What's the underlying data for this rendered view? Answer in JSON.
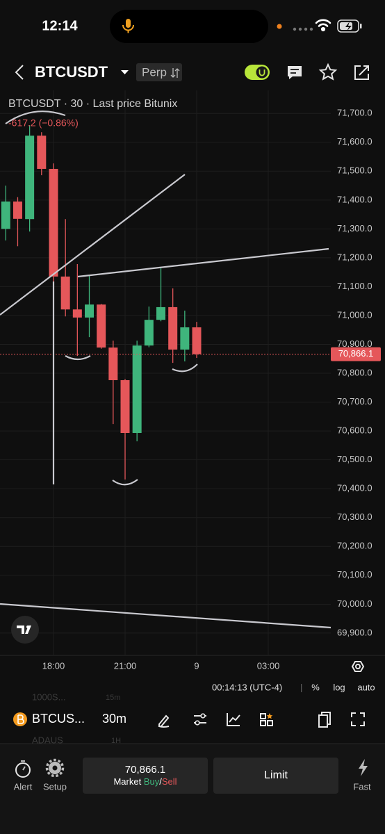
{
  "status_bar": {
    "time": "12:14"
  },
  "header": {
    "symbol": "BTCUSDT",
    "market": "Perp"
  },
  "chart_data": {
    "type": "candlestick",
    "title": "BTCUSDT · 30 · Last price Bitunix",
    "subtitle": "-617.2 (−0.86%)",
    "categories": [
      null,
      null,
      null,
      null,
      "18:00",
      null,
      null,
      null,
      null,
      null,
      "21:00",
      null,
      null,
      null,
      null,
      null,
      "9",
      null,
      null,
      null,
      null,
      null,
      "03:00"
    ],
    "open": [
      71300,
      71395,
      71334,
      71623,
      71508,
      71135,
      71021,
      70993,
      71038,
      70889,
      70776,
      70593,
      70896,
      70985,
      71029,
      70882,
      70959,
      null,
      null,
      null,
      null,
      null,
      null
    ],
    "high": [
      71450,
      71410,
      71659,
      71635,
      71527,
      71334,
      71178,
      71137,
      71040,
      70913,
      70780,
      70913,
      71031,
      71166,
      71094,
      71017,
      70978,
      null,
      null,
      null,
      null,
      null,
      null
    ],
    "low": [
      71260,
      71240,
      71291,
      71486,
      71118,
      70997,
      70860,
      70925,
      70885,
      70624,
      70432,
      70564,
      70890,
      70980,
      70836,
      70841,
      70853,
      null,
      null,
      null,
      null,
      null,
      null
    ],
    "close": [
      71395,
      71335,
      71623,
      71508,
      71135,
      71021,
      70993,
      71038,
      70889,
      70776,
      70593,
      70896,
      70985,
      71029,
      70882,
      70959,
      70866.1,
      null,
      null,
      null,
      null,
      null,
      null
    ],
    "up_color": "#3fb57c",
    "down_color": "#e5575a",
    "last_price": {
      "value": 70866.1,
      "label": "70,866.1"
    },
    "ylim": [
      69825,
      71780
    ],
    "yticks": [
      {
        "value": 69900,
        "label": "69,900.0"
      },
      {
        "value": 70000,
        "label": "70,000.0"
      },
      {
        "value": 70100,
        "label": "70,100.0"
      },
      {
        "value": 70200,
        "label": "70,200.0"
      },
      {
        "value": 70300,
        "label": "70,300.0"
      },
      {
        "value": 70400,
        "label": "70,400.0"
      },
      {
        "value": 70500,
        "label": "70,500.0"
      },
      {
        "value": 70600,
        "label": "70,600.0"
      },
      {
        "value": 70700,
        "label": "70,700.0"
      },
      {
        "value": 70800,
        "label": "70,800.0"
      },
      {
        "value": 70900,
        "label": "70,900.0"
      },
      {
        "value": 71000,
        "label": "71,000.0"
      },
      {
        "value": 71100,
        "label": "71,100.0"
      },
      {
        "value": 71200,
        "label": "71,200.0"
      },
      {
        "value": 71300,
        "label": "71,300.0"
      },
      {
        "value": 71400,
        "label": "71,400.0"
      },
      {
        "value": 71500,
        "label": "71,500.0"
      },
      {
        "value": 71600,
        "label": "71,600.0"
      },
      {
        "value": 71700,
        "label": "71,700.0"
      }
    ],
    "grid": true
  },
  "chart_footer": {
    "countdown": "00:14:13 (UTC-4)",
    "separator": "|",
    "percent": "%",
    "log": "log",
    "auto": "auto"
  },
  "toolbar": {
    "symbol": "BTCUS...",
    "interval": "30m",
    "prev_symbol": "1000S...",
    "prev_interval": "15m",
    "next_symbol": "ADAUS",
    "next_interval": "1H"
  },
  "bottom_bar": {
    "alert": "Alert",
    "setup": "Setup",
    "price": "70,866.1",
    "market": "Market",
    "buy": "Buy",
    "slash": "/",
    "sell": "Sell",
    "limit": "Limit",
    "fast": "Fast"
  }
}
